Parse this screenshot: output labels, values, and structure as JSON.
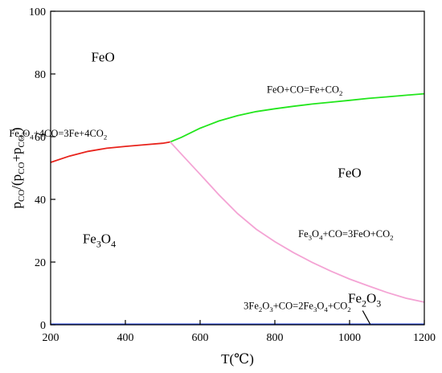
{
  "chart_data": {
    "type": "line",
    "title": "",
    "xlabel": "T(℃)",
    "ylabel": {
      "main": "p",
      "sub1": "CO",
      "mid": "/(p",
      "sub2": "CO",
      "plus": "+p",
      "sub3": "CO",
      "sub3b": "2",
      "close": ")"
    },
    "xlim": [
      200,
      1200
    ],
    "ylim": [
      0,
      100
    ],
    "xticks": [
      200,
      400,
      600,
      800,
      1000,
      1200
    ],
    "yticks": [
      0,
      20,
      40,
      60,
      80,
      100
    ],
    "grid": false,
    "series": [
      {
        "key": "fe3o4-fe",
        "color": "#e8231c",
        "points": [
          [
            200,
            51.8
          ],
          [
            250,
            53.8
          ],
          [
            300,
            55.3
          ],
          [
            350,
            56.3
          ],
          [
            400,
            56.9
          ],
          [
            450,
            57.4
          ],
          [
            500,
            57.9
          ],
          [
            520,
            58.3
          ]
        ]
      },
      {
        "key": "feo-fe",
        "color": "#22e61c",
        "points": [
          [
            520,
            58.3
          ],
          [
            550,
            59.8
          ],
          [
            600,
            62.7
          ],
          [
            650,
            65.0
          ],
          [
            700,
            66.7
          ],
          [
            750,
            68.0
          ],
          [
            800,
            68.9
          ],
          [
            850,
            69.7
          ],
          [
            900,
            70.4
          ],
          [
            950,
            71.0
          ],
          [
            1000,
            71.6
          ],
          [
            1050,
            72.2
          ],
          [
            1100,
            72.7
          ],
          [
            1150,
            73.2
          ],
          [
            1200,
            73.7
          ]
        ]
      },
      {
        "key": "fe3o4-feo",
        "color": "#f4a3d4",
        "points": [
          [
            520,
            58.3
          ],
          [
            550,
            54.4
          ],
          [
            600,
            48.0
          ],
          [
            650,
            41.5
          ],
          [
            700,
            35.5
          ],
          [
            750,
            30.5
          ],
          [
            800,
            26.5
          ],
          [
            850,
            23.0
          ],
          [
            900,
            19.9
          ],
          [
            950,
            17.1
          ],
          [
            1000,
            14.6
          ],
          [
            1050,
            12.4
          ],
          [
            1100,
            10.3
          ],
          [
            1150,
            8.5
          ],
          [
            1200,
            7.2
          ]
        ]
      },
      {
        "key": "fe2o3-fe3o4",
        "color": "#1a3fe0",
        "points": [
          [
            200,
            0.15
          ],
          [
            1200,
            0.15
          ]
        ]
      },
      {
        "key": "fe2o3-boundary",
        "color": "#000000",
        "points": [
          [
            1035,
            4.5
          ],
          [
            1055,
            0.2
          ]
        ]
      }
    ],
    "annotations": [
      {
        "key": "region-feo-top",
        "parts": [
          [
            "FeO",
            ""
          ]
        ],
        "x": 340,
        "y": 84,
        "size": 17
      },
      {
        "key": "region-feo-right",
        "parts": [
          [
            "FeO",
            ""
          ]
        ],
        "x": 1000,
        "y": 47,
        "size": 17
      },
      {
        "key": "region-fe3o4",
        "parts": [
          [
            "Fe",
            ""
          ],
          [
            "3",
            "sub"
          ],
          [
            "O",
            ""
          ],
          [
            "4",
            "sub"
          ]
        ],
        "x": 330,
        "y": 26,
        "size": 17
      },
      {
        "key": "region-fe2o3",
        "parts": [
          [
            "Fe",
            ""
          ],
          [
            "2",
            "sub"
          ],
          [
            "O",
            ""
          ],
          [
            "3",
            "sub"
          ]
        ],
        "x": 1040,
        "y": 7,
        "size": 17
      },
      {
        "key": "reaction-fe3o4-fe",
        "parts": [
          [
            "Fe",
            ""
          ],
          [
            "3",
            "sub"
          ],
          [
            "O",
            ""
          ],
          [
            "4",
            "sub"
          ],
          [
            "+4CO=3Fe+4CO",
            ""
          ],
          [
            "2",
            "sub"
          ]
        ],
        "x": 220,
        "y": 60,
        "size": 12.5
      },
      {
        "key": "reaction-feo-fe",
        "parts": [
          [
            "FeO+CO=Fe+CO",
            ""
          ],
          [
            "2",
            "sub"
          ]
        ],
        "x": 880,
        "y": 74,
        "size": 12.5
      },
      {
        "key": "reaction-fe3o4-feo",
        "parts": [
          [
            "Fe",
            ""
          ],
          [
            "3",
            "sub"
          ],
          [
            "O",
            ""
          ],
          [
            "4",
            "sub"
          ],
          [
            "+CO=3FeO+CO",
            ""
          ],
          [
            "2",
            "sub"
          ]
        ],
        "x": 990,
        "y": 28,
        "size": 12.5
      },
      {
        "key": "reaction-fe2o3-fe3o4",
        "parts": [
          [
            "3Fe",
            ""
          ],
          [
            "2",
            "sub"
          ],
          [
            "O",
            ""
          ],
          [
            "3",
            "sub"
          ],
          [
            "+CO=2Fe",
            ""
          ],
          [
            "3",
            "sub"
          ],
          [
            "O",
            ""
          ],
          [
            "4",
            "sub"
          ],
          [
            "+CO",
            ""
          ],
          [
            "2",
            "sub"
          ]
        ],
        "x": 860,
        "y": 5,
        "size": 12.5
      }
    ]
  }
}
